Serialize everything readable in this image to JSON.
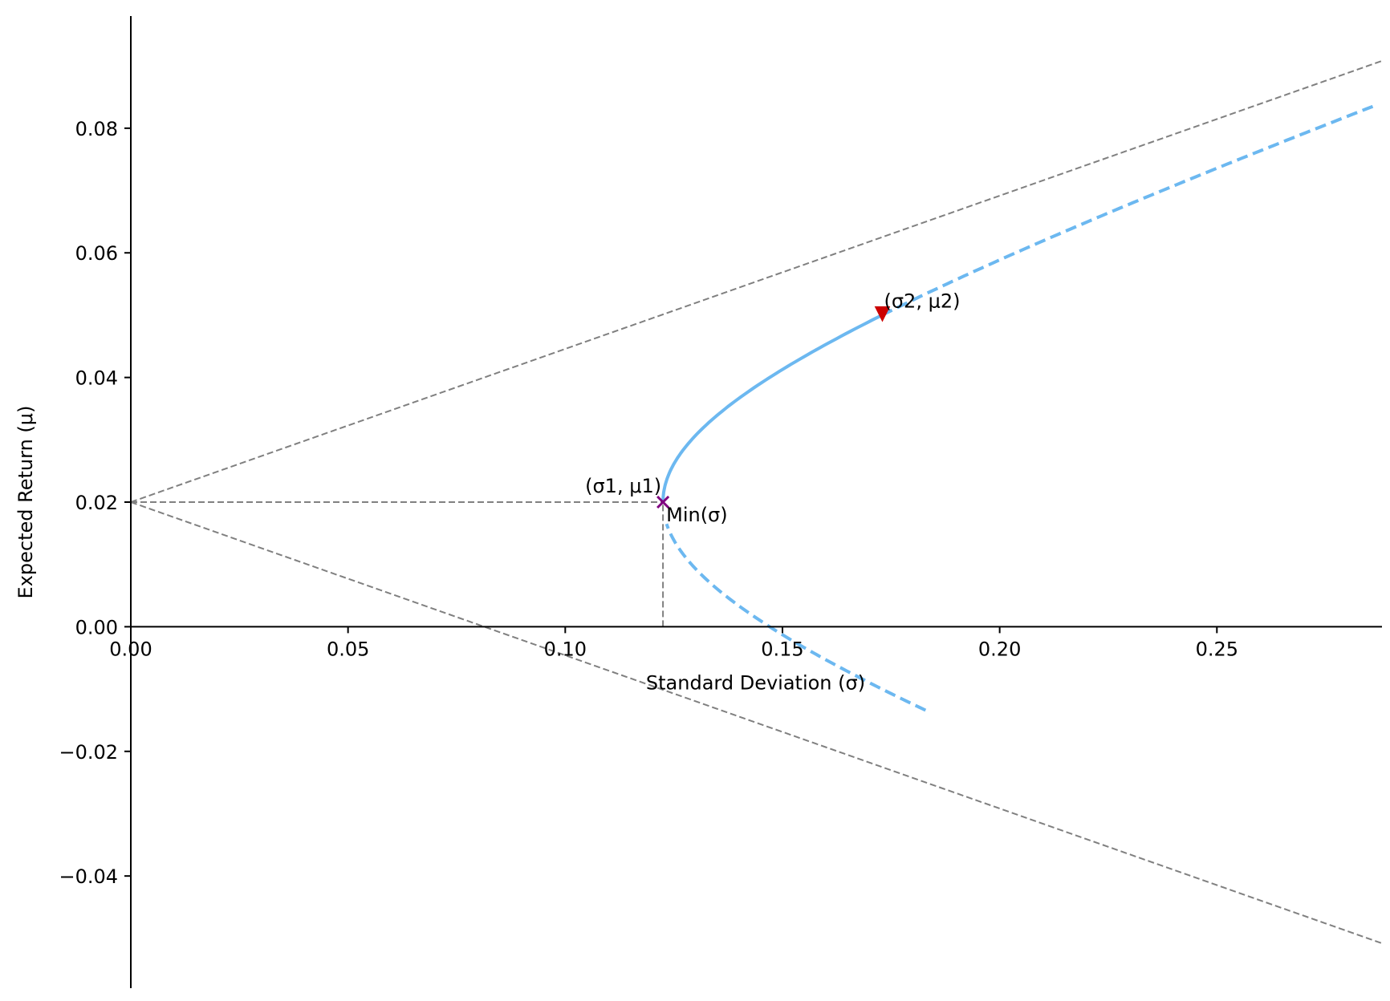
{
  "chart_data": {
    "type": "line",
    "title": "",
    "xlabel": "Standard Deviation (σ)",
    "ylabel": "Expected Return (μ)",
    "xlim": [
      0.0,
      0.288
    ],
    "ylim": [
      -0.058,
      0.098
    ],
    "x_ticks": [
      {
        "value": 0.0,
        "label": "0.00"
      },
      {
        "value": 0.05,
        "label": "0.05"
      },
      {
        "value": 0.1,
        "label": "0.10"
      },
      {
        "value": 0.15,
        "label": "0.15"
      },
      {
        "value": 0.2,
        "label": "0.20"
      },
      {
        "value": 0.25,
        "label": "0.25"
      }
    ],
    "y_ticks": [
      {
        "value": -0.04,
        "label": "−0.04"
      },
      {
        "value": -0.02,
        "label": "−0.02"
      },
      {
        "value": 0.0,
        "label": "0.00"
      },
      {
        "value": 0.02,
        "label": "0.02"
      },
      {
        "value": 0.04,
        "label": "0.04"
      },
      {
        "value": 0.06,
        "label": "0.06"
      },
      {
        "value": 0.08,
        "label": "0.08"
      }
    ],
    "grid": false,
    "frontier": {
      "color": "#6cb8f0",
      "min_sigma": 0.1225,
      "min_mu": 0.02,
      "solid_mu_range": [
        0.02,
        0.05
      ],
      "dashed_upper_mu_range": [
        0.05,
        0.0835
      ],
      "dashed_lower_mu_range": [
        -0.0134,
        0.0165
      ]
    },
    "asymptotes": [
      {
        "color": "#808080",
        "points": [
          [
            0.0,
            0.02
          ],
          [
            0.288,
            0.0908
          ]
        ]
      },
      {
        "color": "#808080",
        "points": [
          [
            0.0,
            0.02
          ],
          [
            0.288,
            -0.0508
          ]
        ]
      }
    ],
    "guides": [
      {
        "color": "#808080",
        "points": [
          [
            0.0,
            0.02
          ],
          [
            0.1225,
            0.02
          ]
        ]
      },
      {
        "color": "#808080",
        "points": [
          [
            0.1225,
            0.0
          ],
          [
            0.1225,
            0.02
          ]
        ]
      }
    ],
    "markers": [
      {
        "shape": "x",
        "color": "#800080",
        "x": 0.1225,
        "y": 0.02
      },
      {
        "shape": "triangle-down",
        "color": "#cc0000",
        "x": 0.173,
        "y": 0.0502
      }
    ],
    "annotations": [
      {
        "text": "(σ1, μ1)",
        "x": 0.1225,
        "y": 0.02,
        "anchor": "end",
        "dx": -2,
        "dy": -12
      },
      {
        "text": "Min(σ)",
        "x": 0.1225,
        "y": 0.02,
        "anchor": "start",
        "dx": 4,
        "dy": 24
      },
      {
        "text": "(σ2, μ2)",
        "x": 0.173,
        "y": 0.0502,
        "anchor": "start",
        "dx": 2,
        "dy": -8
      }
    ]
  }
}
